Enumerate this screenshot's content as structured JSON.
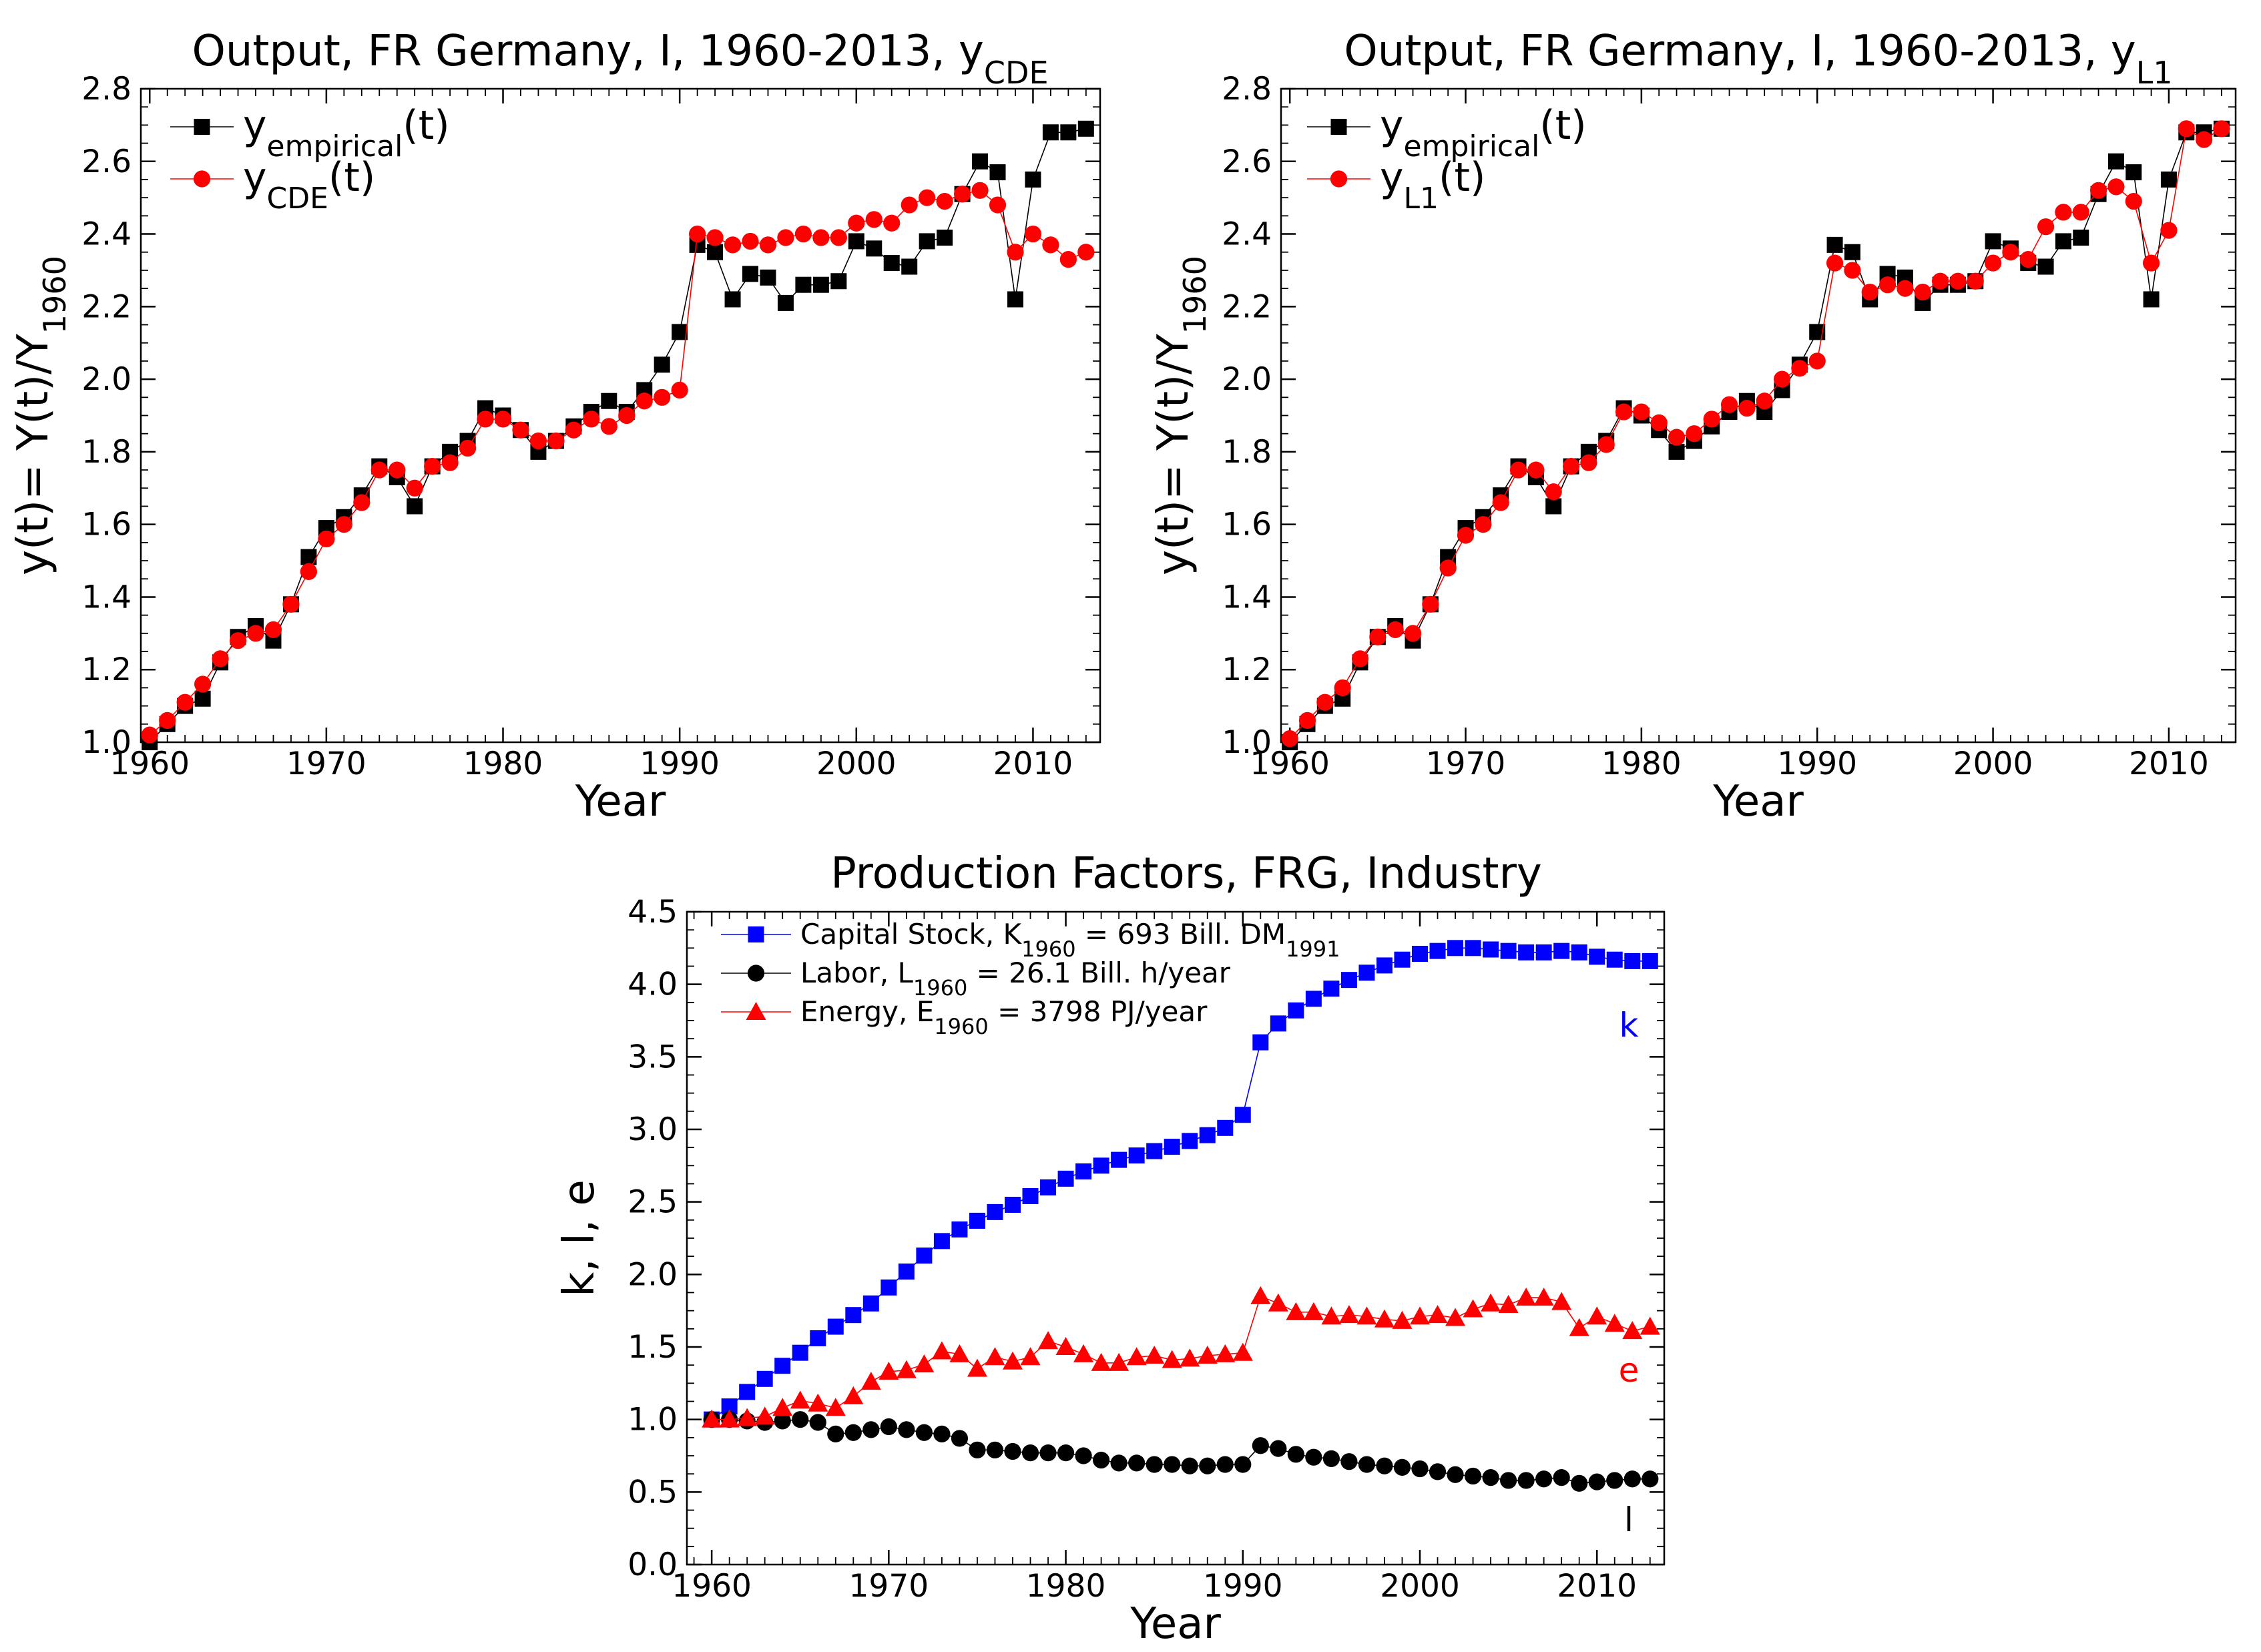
{
  "chart_data": [
    {
      "type": "line",
      "title": "Output, FR Germany, I, 1960-2013, y",
      "title_sub": "CDE",
      "xlabel": "Year",
      "ylabel": {
        "main": "y(t)= Y(t)/Y",
        "sub": "1960"
      },
      "xlim": [
        1959.5,
        2013.8
      ],
      "ylim": [
        1.0,
        2.8
      ],
      "xticks": [
        1960,
        1970,
        1980,
        1990,
        2000,
        2010
      ],
      "yticks": [
        1.0,
        1.2,
        1.4,
        1.6,
        1.8,
        2.0,
        2.2,
        2.4,
        2.6,
        2.8
      ],
      "grid": false,
      "legend_placement": "top-left",
      "x": [
        1960,
        1961,
        1962,
        1963,
        1964,
        1965,
        1966,
        1967,
        1968,
        1969,
        1970,
        1971,
        1972,
        1973,
        1974,
        1975,
        1976,
        1977,
        1978,
        1979,
        1980,
        1981,
        1982,
        1983,
        1984,
        1985,
        1986,
        1987,
        1988,
        1989,
        1990,
        1991,
        1992,
        1993,
        1994,
        1995,
        1996,
        1997,
        1998,
        1999,
        2000,
        2001,
        2002,
        2003,
        2004,
        2005,
        2006,
        2007,
        2008,
        2009,
        2010,
        2011,
        2012,
        2013
      ],
      "series": [
        {
          "name": "y",
          "name_sub": "empirical",
          "name_suffix": "(t)",
          "color": "#000000",
          "marker": "square",
          "values": [
            1.0,
            1.05,
            1.1,
            1.12,
            1.22,
            1.29,
            1.32,
            1.28,
            1.38,
            1.51,
            1.59,
            1.62,
            1.68,
            1.76,
            1.73,
            1.65,
            1.76,
            1.8,
            1.83,
            1.92,
            1.9,
            1.86,
            1.8,
            1.83,
            1.87,
            1.91,
            1.94,
            1.91,
            1.97,
            2.04,
            2.13,
            2.37,
            2.35,
            2.22,
            2.29,
            2.28,
            2.21,
            2.26,
            2.26,
            2.27,
            2.38,
            2.36,
            2.32,
            2.31,
            2.38,
            2.39,
            2.51,
            2.6,
            2.57,
            2.22,
            2.55,
            2.68,
            2.68,
            2.69
          ]
        },
        {
          "name": "y",
          "name_sub": "CDE",
          "name_suffix": "(t)",
          "color": "#ff0000",
          "marker": "circle",
          "values": [
            1.02,
            1.06,
            1.11,
            1.16,
            1.23,
            1.28,
            1.3,
            1.31,
            1.38,
            1.47,
            1.56,
            1.6,
            1.66,
            1.75,
            1.75,
            1.7,
            1.76,
            1.77,
            1.81,
            1.89,
            1.89,
            1.86,
            1.83,
            1.83,
            1.86,
            1.89,
            1.87,
            1.9,
            1.94,
            1.95,
            1.97,
            2.4,
            2.39,
            2.37,
            2.38,
            2.37,
            2.39,
            2.4,
            2.39,
            2.39,
            2.43,
            2.44,
            2.43,
            2.48,
            2.5,
            2.49,
            2.51,
            2.52,
            2.48,
            2.35,
            2.4,
            2.37,
            2.33,
            2.35
          ]
        }
      ]
    },
    {
      "type": "line",
      "title": "Output, FR Germany, I, 1960-2013, y",
      "title_sub": "L1",
      "xlabel": "Year",
      "ylabel": {
        "main": "y(t)= Y(t)/Y",
        "sub": "1960"
      },
      "xlim": [
        1959.5,
        2013.8
      ],
      "ylim": [
        1.0,
        2.8
      ],
      "xticks": [
        1960,
        1970,
        1980,
        1990,
        2000,
        2010
      ],
      "yticks": [
        1.0,
        1.2,
        1.4,
        1.6,
        1.8,
        2.0,
        2.2,
        2.4,
        2.6,
        2.8
      ],
      "grid": false,
      "legend_placement": "top-left",
      "x": [
        1960,
        1961,
        1962,
        1963,
        1964,
        1965,
        1966,
        1967,
        1968,
        1969,
        1970,
        1971,
        1972,
        1973,
        1974,
        1975,
        1976,
        1977,
        1978,
        1979,
        1980,
        1981,
        1982,
        1983,
        1984,
        1985,
        1986,
        1987,
        1988,
        1989,
        1990,
        1991,
        1992,
        1993,
        1994,
        1995,
        1996,
        1997,
        1998,
        1999,
        2000,
        2001,
        2002,
        2003,
        2004,
        2005,
        2006,
        2007,
        2008,
        2009,
        2010,
        2011,
        2012,
        2013
      ],
      "series": [
        {
          "name": "y",
          "name_sub": "empirical",
          "name_suffix": "(t)",
          "color": "#000000",
          "marker": "square",
          "values": [
            1.0,
            1.05,
            1.1,
            1.12,
            1.22,
            1.29,
            1.32,
            1.28,
            1.38,
            1.51,
            1.59,
            1.62,
            1.68,
            1.76,
            1.73,
            1.65,
            1.76,
            1.8,
            1.83,
            1.92,
            1.9,
            1.86,
            1.8,
            1.83,
            1.87,
            1.91,
            1.94,
            1.91,
            1.97,
            2.04,
            2.13,
            2.37,
            2.35,
            2.22,
            2.29,
            2.28,
            2.21,
            2.26,
            2.26,
            2.27,
            2.38,
            2.36,
            2.32,
            2.31,
            2.38,
            2.39,
            2.51,
            2.6,
            2.57,
            2.22,
            2.55,
            2.68,
            2.68,
            2.69
          ]
        },
        {
          "name": "y",
          "name_sub": "L1",
          "name_suffix": "(t)",
          "color": "#ff0000",
          "marker": "circle",
          "values": [
            1.01,
            1.06,
            1.11,
            1.15,
            1.23,
            1.29,
            1.31,
            1.3,
            1.38,
            1.48,
            1.57,
            1.6,
            1.66,
            1.75,
            1.75,
            1.69,
            1.76,
            1.77,
            1.82,
            1.91,
            1.91,
            1.88,
            1.84,
            1.85,
            1.89,
            1.93,
            1.92,
            1.94,
            2.0,
            2.03,
            2.05,
            2.32,
            2.3,
            2.24,
            2.26,
            2.25,
            2.24,
            2.27,
            2.27,
            2.27,
            2.32,
            2.35,
            2.33,
            2.42,
            2.46,
            2.46,
            2.52,
            2.53,
            2.49,
            2.32,
            2.41,
            2.69,
            2.66,
            2.69
          ]
        }
      ]
    },
    {
      "type": "line",
      "title": "Production Factors, FRG, Industry",
      "xlabel": "Year",
      "ylabel": "k, l, e",
      "xlim": [
        1958.6,
        2013.8
      ],
      "ylim": [
        0.0,
        4.5
      ],
      "xticks": [
        1960,
        1970,
        1980,
        1990,
        2000,
        2010
      ],
      "yticks": [
        0.0,
        0.5,
        1.0,
        1.5,
        2.0,
        2.5,
        3.0,
        3.5,
        4.0,
        4.5
      ],
      "grid": false,
      "legend_placement": "top-left",
      "x": [
        1960,
        1961,
        1962,
        1963,
        1964,
        1965,
        1966,
        1967,
        1968,
        1969,
        1970,
        1971,
        1972,
        1973,
        1974,
        1975,
        1976,
        1977,
        1978,
        1979,
        1980,
        1981,
        1982,
        1983,
        1984,
        1985,
        1986,
        1987,
        1988,
        1989,
        1990,
        1991,
        1992,
        1993,
        1994,
        1995,
        1996,
        1997,
        1998,
        1999,
        2000,
        2001,
        2002,
        2003,
        2004,
        2005,
        2006,
        2007,
        2008,
        2009,
        2010,
        2011,
        2012,
        2013
      ],
      "series": [
        {
          "name": "Capital Stock, K",
          "name_sub": "1960",
          "name_suffix": " = 693 Bill. DM",
          "name_sub2": "1991",
          "label": "k",
          "color": "#0000ff",
          "marker": "square",
          "values": [
            1.0,
            1.09,
            1.19,
            1.28,
            1.37,
            1.46,
            1.56,
            1.64,
            1.72,
            1.8,
            1.91,
            2.02,
            2.13,
            2.23,
            2.31,
            2.37,
            2.43,
            2.48,
            2.54,
            2.6,
            2.66,
            2.71,
            2.75,
            2.79,
            2.82,
            2.85,
            2.88,
            2.92,
            2.96,
            3.01,
            3.1,
            3.6,
            3.73,
            3.82,
            3.9,
            3.97,
            4.03,
            4.08,
            4.13,
            4.17,
            4.21,
            4.23,
            4.25,
            4.25,
            4.24,
            4.23,
            4.22,
            4.22,
            4.23,
            4.22,
            4.19,
            4.17,
            4.16,
            4.16
          ]
        },
        {
          "name": "Labor, L",
          "name_sub": "1960",
          "name_suffix": " = 26.1 Bill. h/year",
          "label": "l",
          "color": "#000000",
          "marker": "circle",
          "values": [
            1.0,
            1.0,
            0.99,
            0.98,
            0.99,
            1.0,
            0.98,
            0.9,
            0.91,
            0.93,
            0.95,
            0.93,
            0.91,
            0.9,
            0.87,
            0.79,
            0.79,
            0.78,
            0.77,
            0.77,
            0.77,
            0.75,
            0.72,
            0.7,
            0.7,
            0.69,
            0.69,
            0.68,
            0.68,
            0.69,
            0.69,
            0.82,
            0.8,
            0.76,
            0.74,
            0.73,
            0.71,
            0.69,
            0.68,
            0.67,
            0.66,
            0.64,
            0.62,
            0.61,
            0.6,
            0.58,
            0.58,
            0.59,
            0.6,
            0.56,
            0.57,
            0.58,
            0.59,
            0.59
          ]
        },
        {
          "name": "Energy, E",
          "name_sub": "1960",
          "name_suffix": " = 3798 PJ/year",
          "label": "e",
          "color": "#ff0000",
          "marker": "triangle",
          "values": [
            1.0,
            1.0,
            1.01,
            1.02,
            1.08,
            1.13,
            1.11,
            1.08,
            1.16,
            1.26,
            1.33,
            1.34,
            1.38,
            1.47,
            1.45,
            1.35,
            1.43,
            1.4,
            1.43,
            1.54,
            1.5,
            1.45,
            1.39,
            1.39,
            1.43,
            1.44,
            1.41,
            1.42,
            1.44,
            1.45,
            1.46,
            1.85,
            1.8,
            1.74,
            1.74,
            1.71,
            1.72,
            1.71,
            1.69,
            1.68,
            1.71,
            1.72,
            1.7,
            1.76,
            1.8,
            1.79,
            1.84,
            1.84,
            1.81,
            1.63,
            1.71,
            1.66,
            1.61,
            1.64
          ]
        }
      ]
    }
  ]
}
